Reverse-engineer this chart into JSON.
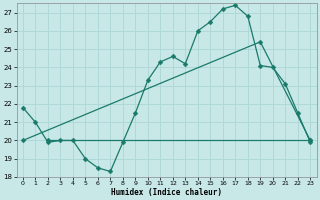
{
  "background_color": "#c8e8e8",
  "grid_color": "#b0d8d8",
  "line_color": "#1a7a6a",
  "xlabel": "Humidex (Indice chaleur)",
  "ylim": [
    18,
    27.5
  ],
  "xlim": [
    -0.5,
    23.5
  ],
  "yticks": [
    18,
    19,
    20,
    21,
    22,
    23,
    24,
    25,
    26,
    27
  ],
  "xticks": [
    0,
    1,
    2,
    3,
    4,
    5,
    6,
    7,
    8,
    9,
    10,
    11,
    12,
    13,
    14,
    15,
    16,
    17,
    18,
    19,
    20,
    21,
    22,
    23
  ],
  "line1_x": [
    0,
    1,
    2,
    3,
    4,
    5,
    6,
    7,
    8,
    9,
    10,
    11,
    12,
    13,
    14,
    15,
    16,
    17,
    18,
    19,
    20,
    21,
    22,
    23
  ],
  "line1_y": [
    21.8,
    21.0,
    19.9,
    20.0,
    20.0,
    19.0,
    18.5,
    18.3,
    19.9,
    21.5,
    23.3,
    24.3,
    24.6,
    24.2,
    26.0,
    26.5,
    27.2,
    27.4,
    26.8,
    24.1,
    24.0,
    23.1,
    21.5,
    19.9
  ],
  "line2_x": [
    2,
    23
  ],
  "line2_y": [
    20.0,
    20.0
  ],
  "line3_x": [
    0,
    19,
    23
  ],
  "line3_y": [
    20.0,
    25.4,
    20.0
  ],
  "markersize": 2.5,
  "linewidth": 0.9
}
